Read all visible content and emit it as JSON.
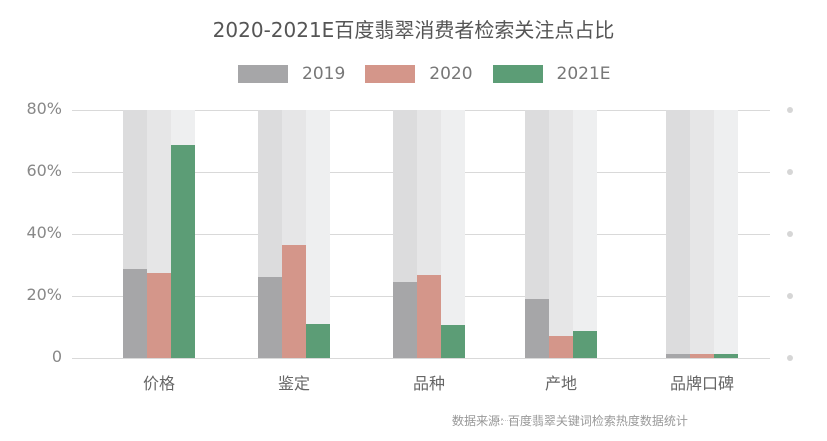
{
  "title": "2020-2021E百度翡翠消费者检索关注点占比",
  "legend": [
    {
      "label": "2019",
      "color": "#a6a6a8"
    },
    {
      "label": "2020",
      "color": "#d4968a"
    },
    {
      "label": "2021E",
      "color": "#5c9d76"
    }
  ],
  "yticks": [
    "80%",
    "60%",
    "40%",
    "20%",
    "0"
  ],
  "source": "数据来源: 百度翡翠关键词检索热度数据统计",
  "chart_data": {
    "type": "bar",
    "title": "2020-2021E百度翡翠消费者检索关注点占比",
    "xlabel": "",
    "ylabel": "",
    "ylim": [
      0,
      80
    ],
    "y_tick_labels": [
      "0",
      "20%",
      "40%",
      "60%",
      "80%"
    ],
    "categories": [
      "价格",
      "鉴定",
      "品种",
      "产地",
      "品牌口碑"
    ],
    "series": [
      {
        "name": "2019",
        "color": "#a6a6a8",
        "values": [
          28.7,
          26.1,
          24.5,
          19.0,
          1.3
        ]
      },
      {
        "name": "2020",
        "color": "#d4968a",
        "values": [
          27.4,
          36.5,
          26.8,
          7.1,
          1.3
        ]
      },
      {
        "name": "2021E",
        "color": "#5c9d76",
        "values": [
          68.7,
          11.0,
          10.6,
          8.7,
          1.3
        ]
      }
    ],
    "legend_position": "top",
    "grid": true,
    "annotations": [
      "数据来源: 百度翡翠关键词检索热度数据统计"
    ]
  }
}
